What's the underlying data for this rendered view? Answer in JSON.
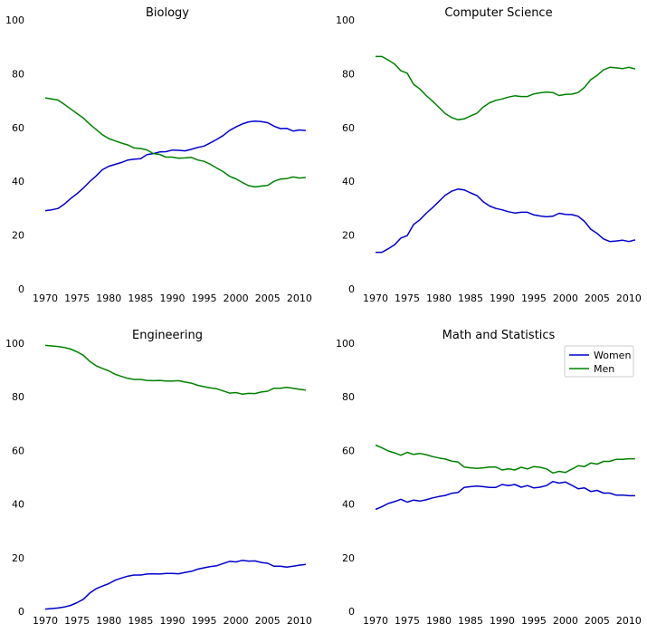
{
  "chart_data": [
    {
      "type": "line",
      "title": "Biology",
      "x": [
        1970,
        1971,
        1972,
        1973,
        1974,
        1975,
        1976,
        1977,
        1978,
        1979,
        1980,
        1981,
        1982,
        1983,
        1984,
        1985,
        1986,
        1987,
        1988,
        1989,
        1990,
        1991,
        1992,
        1993,
        1994,
        1995,
        1996,
        1997,
        1998,
        1999,
        2000,
        2001,
        2002,
        2003,
        2004,
        2005,
        2006,
        2007,
        2008,
        2009,
        2010,
        2011
      ],
      "series": [
        {
          "name": "Women",
          "color": "#0000cc",
          "values": [
            29.1,
            29.4,
            29.9,
            31.5,
            33.6,
            35.4,
            37.5,
            39.9,
            42.0,
            44.3,
            45.6,
            46.3,
            47.0,
            47.9,
            48.2,
            48.4,
            49.9,
            50.3,
            50.9,
            51.0,
            51.6,
            51.5,
            51.3,
            51.9,
            52.6,
            53.1,
            54.3,
            55.6,
            57.0,
            58.9,
            60.2,
            61.3,
            62.1,
            62.4,
            62.2,
            61.8,
            60.5,
            59.6,
            59.7,
            58.7,
            59.1,
            58.9
          ]
        },
        {
          "name": "Men",
          "color": "#008000",
          "values": [
            71.0,
            70.6,
            70.2,
            68.6,
            66.9,
            65.2,
            63.5,
            61.2,
            59.3,
            57.3,
            55.9,
            55.0,
            54.2,
            53.5,
            52.4,
            52.2,
            51.7,
            50.3,
            50.0,
            49.0,
            49.0,
            48.6,
            48.7,
            48.9,
            47.9,
            47.4,
            46.3,
            44.9,
            43.6,
            41.9,
            40.9,
            39.6,
            38.4,
            37.9,
            38.2,
            38.5,
            40.0,
            40.8,
            41.0,
            41.6,
            41.2,
            41.4
          ]
        }
      ],
      "xticks": [
        "1970",
        "1975",
        "1980",
        "1985",
        "1990",
        "1995",
        "2000",
        "2005",
        "2010"
      ],
      "yticks": [
        "0",
        "20",
        "40",
        "60",
        "80",
        "100"
      ],
      "xlim": [
        1968,
        2011.3
      ],
      "ylim": [
        0,
        100
      ],
      "grid": false
    },
    {
      "type": "line",
      "title": "Computer Science",
      "x": [
        1970,
        1971,
        1972,
        1973,
        1974,
        1975,
        1976,
        1977,
        1978,
        1979,
        1980,
        1981,
        1982,
        1983,
        1984,
        1985,
        1986,
        1987,
        1988,
        1989,
        1990,
        1991,
        1992,
        1993,
        1994,
        1995,
        1996,
        1997,
        1998,
        1999,
        2000,
        2001,
        2002,
        2003,
        2004,
        2005,
        2006,
        2007,
        2008,
        2009,
        2010,
        2011
      ],
      "series": [
        {
          "name": "Women",
          "color": "#0000cc",
          "values": [
            13.6,
            13.6,
            14.9,
            16.4,
            18.9,
            19.8,
            23.9,
            25.7,
            28.1,
            30.2,
            32.5,
            34.8,
            36.3,
            37.1,
            36.8,
            35.7,
            34.7,
            32.4,
            30.8,
            29.9,
            29.4,
            28.7,
            28.2,
            28.5,
            28.5,
            27.5,
            27.1,
            26.8,
            27.0,
            28.1,
            27.7,
            27.6,
            27.0,
            25.1,
            22.2,
            20.6,
            18.6,
            17.6,
            17.8,
            18.1,
            17.6,
            18.2
          ]
        },
        {
          "name": "Men",
          "color": "#008000",
          "values": [
            86.4,
            86.4,
            85.1,
            83.6,
            81.1,
            80.2,
            76.1,
            74.3,
            71.9,
            69.8,
            67.5,
            65.2,
            63.7,
            62.9,
            63.2,
            64.3,
            65.3,
            67.6,
            69.2,
            70.1,
            70.6,
            71.3,
            71.8,
            71.5,
            71.5,
            72.5,
            72.9,
            73.2,
            73.0,
            71.9,
            72.3,
            72.4,
            73.0,
            74.9,
            77.8,
            79.4,
            81.4,
            82.4,
            82.2,
            81.9,
            82.4,
            81.8
          ]
        }
      ],
      "xticks": [
        "1970",
        "1975",
        "1980",
        "1985",
        "1990",
        "1995",
        "2000",
        "2005",
        "2010"
      ],
      "yticks": [
        "0",
        "20",
        "40",
        "60",
        "80",
        "100"
      ],
      "xlim": [
        1968,
        2011.3
      ],
      "ylim": [
        0,
        100
      ],
      "grid": false
    },
    {
      "type": "line",
      "title": "Engineering",
      "x": [
        1970,
        1971,
        1972,
        1973,
        1974,
        1975,
        1976,
        1977,
        1978,
        1979,
        1980,
        1981,
        1982,
        1983,
        1984,
        1985,
        1986,
        1987,
        1988,
        1989,
        1990,
        1991,
        1992,
        1993,
        1994,
        1995,
        1996,
        1997,
        1998,
        1999,
        2000,
        2001,
        2002,
        2003,
        2004,
        2005,
        2006,
        2007,
        2008,
        2009,
        2010,
        2011
      ],
      "series": [
        {
          "name": "Women",
          "color": "#0000cc",
          "values": [
            0.8,
            1.0,
            1.2,
            1.6,
            2.2,
            3.2,
            4.5,
            6.8,
            8.4,
            9.4,
            10.3,
            11.6,
            12.4,
            13.1,
            13.5,
            13.5,
            13.9,
            14.0,
            13.9,
            14.1,
            14.1,
            14.0,
            14.5,
            14.9,
            15.7,
            16.2,
            16.7,
            17.0,
            17.8,
            18.6,
            18.4,
            19.0,
            18.7,
            18.8,
            18.2,
            17.9,
            16.8,
            16.8,
            16.5,
            16.8,
            17.2,
            17.5
          ]
        },
        {
          "name": "Men",
          "color": "#008000",
          "values": [
            99.2,
            99.0,
            98.8,
            98.4,
            97.8,
            96.8,
            95.5,
            93.2,
            91.6,
            90.6,
            89.7,
            88.4,
            87.6,
            86.9,
            86.5,
            86.5,
            86.1,
            86.0,
            86.1,
            85.9,
            85.9,
            86.0,
            85.5,
            85.1,
            84.3,
            83.8,
            83.3,
            83.0,
            82.2,
            81.4,
            81.6,
            81.0,
            81.3,
            81.2,
            81.8,
            82.1,
            83.2,
            83.2,
            83.5,
            83.2,
            82.8,
            82.5
          ]
        }
      ],
      "xticks": [
        "1970",
        "1975",
        "1980",
        "1985",
        "1990",
        "1995",
        "2000",
        "2005",
        "2010"
      ],
      "yticks": [
        "0",
        "20",
        "40",
        "60",
        "80",
        "100"
      ],
      "xlim": [
        1968,
        2011.3
      ],
      "ylim": [
        0,
        100
      ],
      "grid": false
    },
    {
      "type": "line",
      "title": "Math and Statistics",
      "x": [
        1970,
        1971,
        1972,
        1973,
        1974,
        1975,
        1976,
        1977,
        1978,
        1979,
        1980,
        1981,
        1982,
        1983,
        1984,
        1985,
        1986,
        1987,
        1988,
        1989,
        1990,
        1991,
        1992,
        1993,
        1994,
        1995,
        1996,
        1997,
        1998,
        1999,
        2000,
        2001,
        2002,
        2003,
        2004,
        2005,
        2006,
        2007,
        2008,
        2009,
        2010,
        2011
      ],
      "series": [
        {
          "name": "Women",
          "color": "#0000cc",
          "values": [
            38.0,
            39.0,
            40.2,
            40.9,
            41.8,
            40.7,
            41.5,
            41.1,
            41.6,
            42.3,
            42.8,
            43.2,
            44.0,
            44.3,
            46.2,
            46.5,
            46.7,
            46.5,
            46.2,
            46.2,
            47.3,
            46.9,
            47.3,
            46.3,
            46.9,
            46.0,
            46.3,
            46.9,
            48.4,
            47.8,
            48.2,
            47.0,
            45.7,
            46.0,
            44.7,
            45.1,
            44.1,
            44.1,
            43.3,
            43.3,
            43.1,
            43.1
          ]
        },
        {
          "name": "Men",
          "color": "#008000",
          "values": [
            62.0,
            61.0,
            59.8,
            59.1,
            58.2,
            59.3,
            58.5,
            58.9,
            58.4,
            57.7,
            57.2,
            56.8,
            56.0,
            55.7,
            53.8,
            53.5,
            53.3,
            53.5,
            53.8,
            53.8,
            52.7,
            53.1,
            52.7,
            53.7,
            53.1,
            54.0,
            53.7,
            53.1,
            51.6,
            52.2,
            51.8,
            53.0,
            54.3,
            54.0,
            55.3,
            54.9,
            55.9,
            55.9,
            56.7,
            56.7,
            56.9,
            56.9
          ]
        }
      ],
      "xticks": [
        "1970",
        "1975",
        "1980",
        "1985",
        "1990",
        "1995",
        "2000",
        "2005",
        "2010"
      ],
      "yticks": [
        "0",
        "20",
        "40",
        "60",
        "80",
        "100"
      ],
      "xlim": [
        1968,
        2011.3
      ],
      "ylim": [
        0,
        100
      ],
      "grid": false,
      "legend": {
        "position": "top-right",
        "entries": [
          "Women",
          "Men"
        ]
      }
    }
  ]
}
